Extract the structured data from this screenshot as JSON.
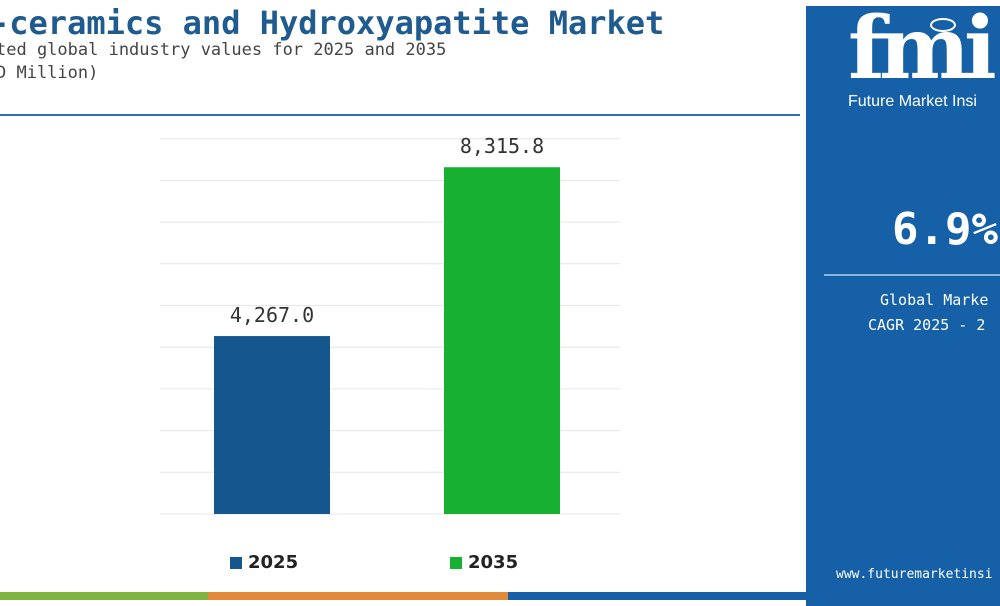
{
  "header": {
    "title": "-ceramics and Hydroxyapatite Market",
    "subtitle": "ted global industry values for 2025 and 2035",
    "unit": "D Million)"
  },
  "side_panel": {
    "logo_text": "fmi",
    "brand_name": "Future Market Insi",
    "cagr_value": "6.9%",
    "cagr_label_line1": "Global Marke",
    "cagr_label_line2": "CAGR 2025 - 2",
    "website": "www.futuremarketinsi"
  },
  "colors": {
    "title": "#1f5b8f",
    "bar_2025": "#14578f",
    "bar_2035": "#18b030",
    "panel_bg": "#1560a6",
    "strip": [
      "#7fb440",
      "#e08a3a",
      "#1560a6"
    ]
  },
  "chart_data": {
    "type": "bar",
    "categories": [
      "2025",
      "2035"
    ],
    "values": [
      4267.0,
      8315.8
    ],
    "data_labels": [
      "4,267.0",
      "8,315.8"
    ],
    "series_colors": [
      "#14578f",
      "#18b030"
    ],
    "legend": [
      "2025",
      "2035"
    ],
    "legend_position": "bottom",
    "grid": true,
    "ylim": [
      0,
      9000
    ]
  }
}
